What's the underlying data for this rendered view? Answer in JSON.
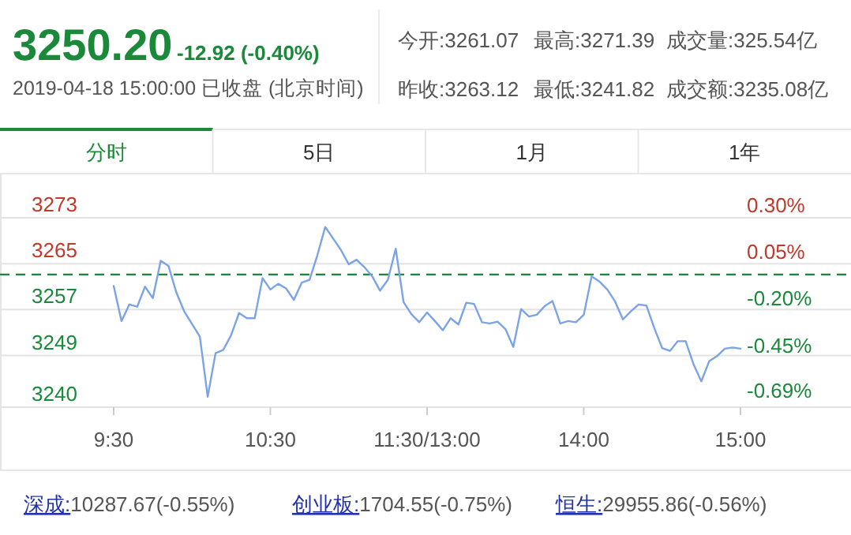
{
  "chart_data": {
    "type": "line",
    "title": "3250.20",
    "subtitle": "-12.92 (-0.40%)",
    "annotations": [
      "2019-04-18 15:00:00 已收盘 (北京时间)",
      "今开:3261.07",
      "最高:3271.39",
      "成交量:325.54亿",
      "昨收:3263.12",
      "最低:3241.82",
      "成交额:3235.08亿",
      "分时",
      "5日",
      "1月",
      "1年",
      "深成:10287.67(-0.55%)",
      "创业板:1704.55(-0.75%)",
      "恒生:29955.86(-0.56%)"
    ],
    "categories": [
      "9:30",
      null,
      null,
      null,
      null,
      null,
      null,
      null,
      null,
      null,
      null,
      null,
      null,
      null,
      null,
      null,
      null,
      null,
      null,
      null,
      "10:30",
      null,
      null,
      null,
      null,
      null,
      null,
      null,
      null,
      null,
      null,
      null,
      null,
      null,
      null,
      null,
      null,
      null,
      null,
      null,
      "11:30/13:00",
      null,
      null,
      null,
      null,
      null,
      null,
      null,
      null,
      null,
      null,
      null,
      null,
      null,
      null,
      null,
      null,
      null,
      null,
      null,
      "14:00",
      null,
      null,
      null,
      null,
      null,
      null,
      null,
      null,
      null,
      null,
      null,
      null,
      null,
      null,
      null,
      null,
      null,
      null,
      null,
      "15:00"
    ],
    "values": [
      3261.1,
      3255.0,
      3257.9,
      3257.5,
      3261.0,
      3259.0,
      3265.5,
      3264.6,
      3260.0,
      3256.7,
      3254.5,
      3252.3,
      3241.8,
      3249.4,
      3250.0,
      3252.6,
      3256.4,
      3255.5,
      3255.5,
      3262.5,
      3260.5,
      3261.5,
      3260.7,
      3258.7,
      3261.7,
      3262.2,
      3266.5,
      3271.4,
      3269.4,
      3267.4,
      3264.9,
      3265.7,
      3264.4,
      3262.8,
      3260.3,
      3262.2,
      3267.6,
      3258.3,
      3256.2,
      3254.8,
      3256.5,
      3255.0,
      3253.4,
      3255.5,
      3254.4,
      3258.2,
      3258.0,
      3254.8,
      3254.6,
      3254.9,
      3253.6,
      3250.5,
      3257.1,
      3255.8,
      3256.1,
      3257.6,
      3258.5,
      3254.6,
      3255.0,
      3254.8,
      3256.1,
      3262.8,
      3261.9,
      3260.5,
      3258.4,
      3255.3,
      3256.7,
      3257.9,
      3257.7,
      3253.8,
      3250.3,
      3249.8,
      3251.5,
      3251.5,
      3247.5,
      3244.5,
      3248.0,
      3248.9,
      3250.2,
      3250.4,
      3250.2
    ],
    "color": "#7ba3e6",
    "ylim": [
      3240,
      3273
    ],
    "yticks": [
      3240,
      3249,
      3257,
      3265,
      3273
    ],
    "y2lim": [
      -0.7085,
      0.3028
    ],
    "y2ticks": [
      {
        "value": -0.69,
        "label": "-0.69%"
      },
      {
        "value": -0.45,
        "label": "-0.45%"
      },
      {
        "value": -0.2,
        "label": "-0.20%"
      },
      {
        "value": 0.05,
        "label": "0.05%"
      },
      {
        "value": 0.3,
        "label": "0.30%"
      }
    ],
    "ref_lines": [
      {
        "axis": "y",
        "value": 3263.12,
        "color": "#1a8a3a",
        "line_style": "dashed"
      }
    ],
    "grid": "y"
  }
}
